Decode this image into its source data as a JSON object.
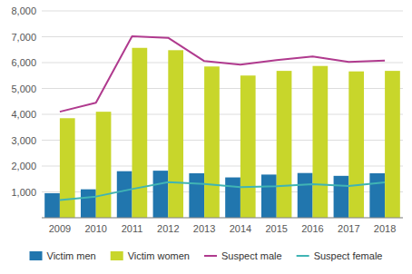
{
  "chart_data": {
    "type": "bar",
    "categories": [
      "2009",
      "2010",
      "2011",
      "2012",
      "2013",
      "2014",
      "2015",
      "2016",
      "2017",
      "2018"
    ],
    "series": [
      {
        "name": "Victim men",
        "type": "bar",
        "color": "#2176ae",
        "values": [
          950,
          1100,
          1800,
          1820,
          1720,
          1560,
          1670,
          1730,
          1620,
          1720
        ]
      },
      {
        "name": "Victim women",
        "type": "bar",
        "color": "#c8d62b",
        "values": [
          3850,
          4100,
          6570,
          6480,
          5850,
          5500,
          5680,
          5870,
          5660,
          5680
        ]
      },
      {
        "name": "Suspect male",
        "type": "line",
        "color": "#b03a8e",
        "values": [
          4100,
          4450,
          7020,
          6960,
          6060,
          5920,
          6100,
          6240,
          6030,
          6080
        ]
      },
      {
        "name": "Suspect female",
        "type": "line",
        "color": "#40b4b4",
        "values": [
          680,
          820,
          1110,
          1380,
          1310,
          1180,
          1220,
          1300,
          1230,
          1370
        ]
      }
    ],
    "ylim": [
      0,
      8000
    ],
    "yticks": [
      {
        "value": 0,
        "label": null
      },
      {
        "value": 1000,
        "label": "1,000"
      },
      {
        "value": 2000,
        "label": "2,000"
      },
      {
        "value": 3000,
        "label": "3,000"
      },
      {
        "value": 4000,
        "label": "4,000"
      },
      {
        "value": 5000,
        "label": "5,000"
      },
      {
        "value": 6000,
        "label": "6,000"
      },
      {
        "value": 7000,
        "label": "7,000"
      },
      {
        "value": 8000,
        "label": "8,000"
      }
    ],
    "grid": true,
    "legend": "bottom"
  }
}
